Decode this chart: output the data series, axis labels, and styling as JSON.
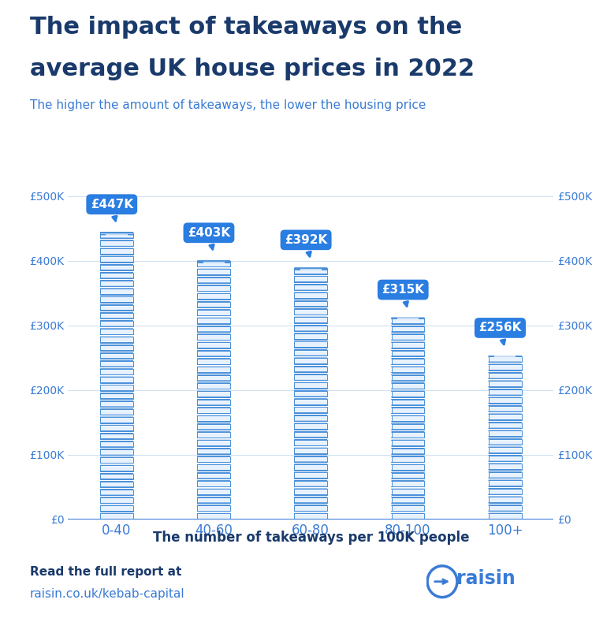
{
  "title_line1": "The impact of takeaways on the",
  "title_line2": "average UK house prices in 2022",
  "subtitle": "The higher the amount of takeaways, the lower the housing price",
  "categories": [
    "0-40",
    "40-60",
    "60-80",
    "80-100",
    "100+"
  ],
  "values": [
    447000,
    403000,
    392000,
    315000,
    256000
  ],
  "labels": [
    "£447K",
    "£403K",
    "£392K",
    "£315K",
    "£256K"
  ],
  "xlabel": "The number of takeaways per 100K people",
  "yticks": [
    0,
    100000,
    200000,
    300000,
    400000,
    500000
  ],
  "ytick_labels": [
    "£0",
    "£100K",
    "£200K",
    "£300K",
    "£400K",
    "£500K"
  ],
  "ymax": 500000,
  "title_color": "#1a3a6b",
  "subtitle_color": "#3a7bd5",
  "label_bg_color": "#2a7de1",
  "label_text_color": "#ffffff",
  "coin_fill_light": "#e8f2ff",
  "coin_fill_mid": "#c8dff5",
  "coin_edge_color": "#4a90d9",
  "coin_top_color": "#f0f7ff",
  "coin_side_left": "#b0ccee",
  "coin_side_right": "#d0e5f8",
  "axis_color": "#3a7bd5",
  "grid_color": "#d0e0f0",
  "xlabel_color": "#1a3a6b",
  "footer_text1": "Read the full report at",
  "footer_text2": "raisin.co.uk/kebab-capital",
  "footer_color1": "#1a3a6b",
  "footer_color2": "#3a7bd5",
  "background_color": "#ffffff"
}
